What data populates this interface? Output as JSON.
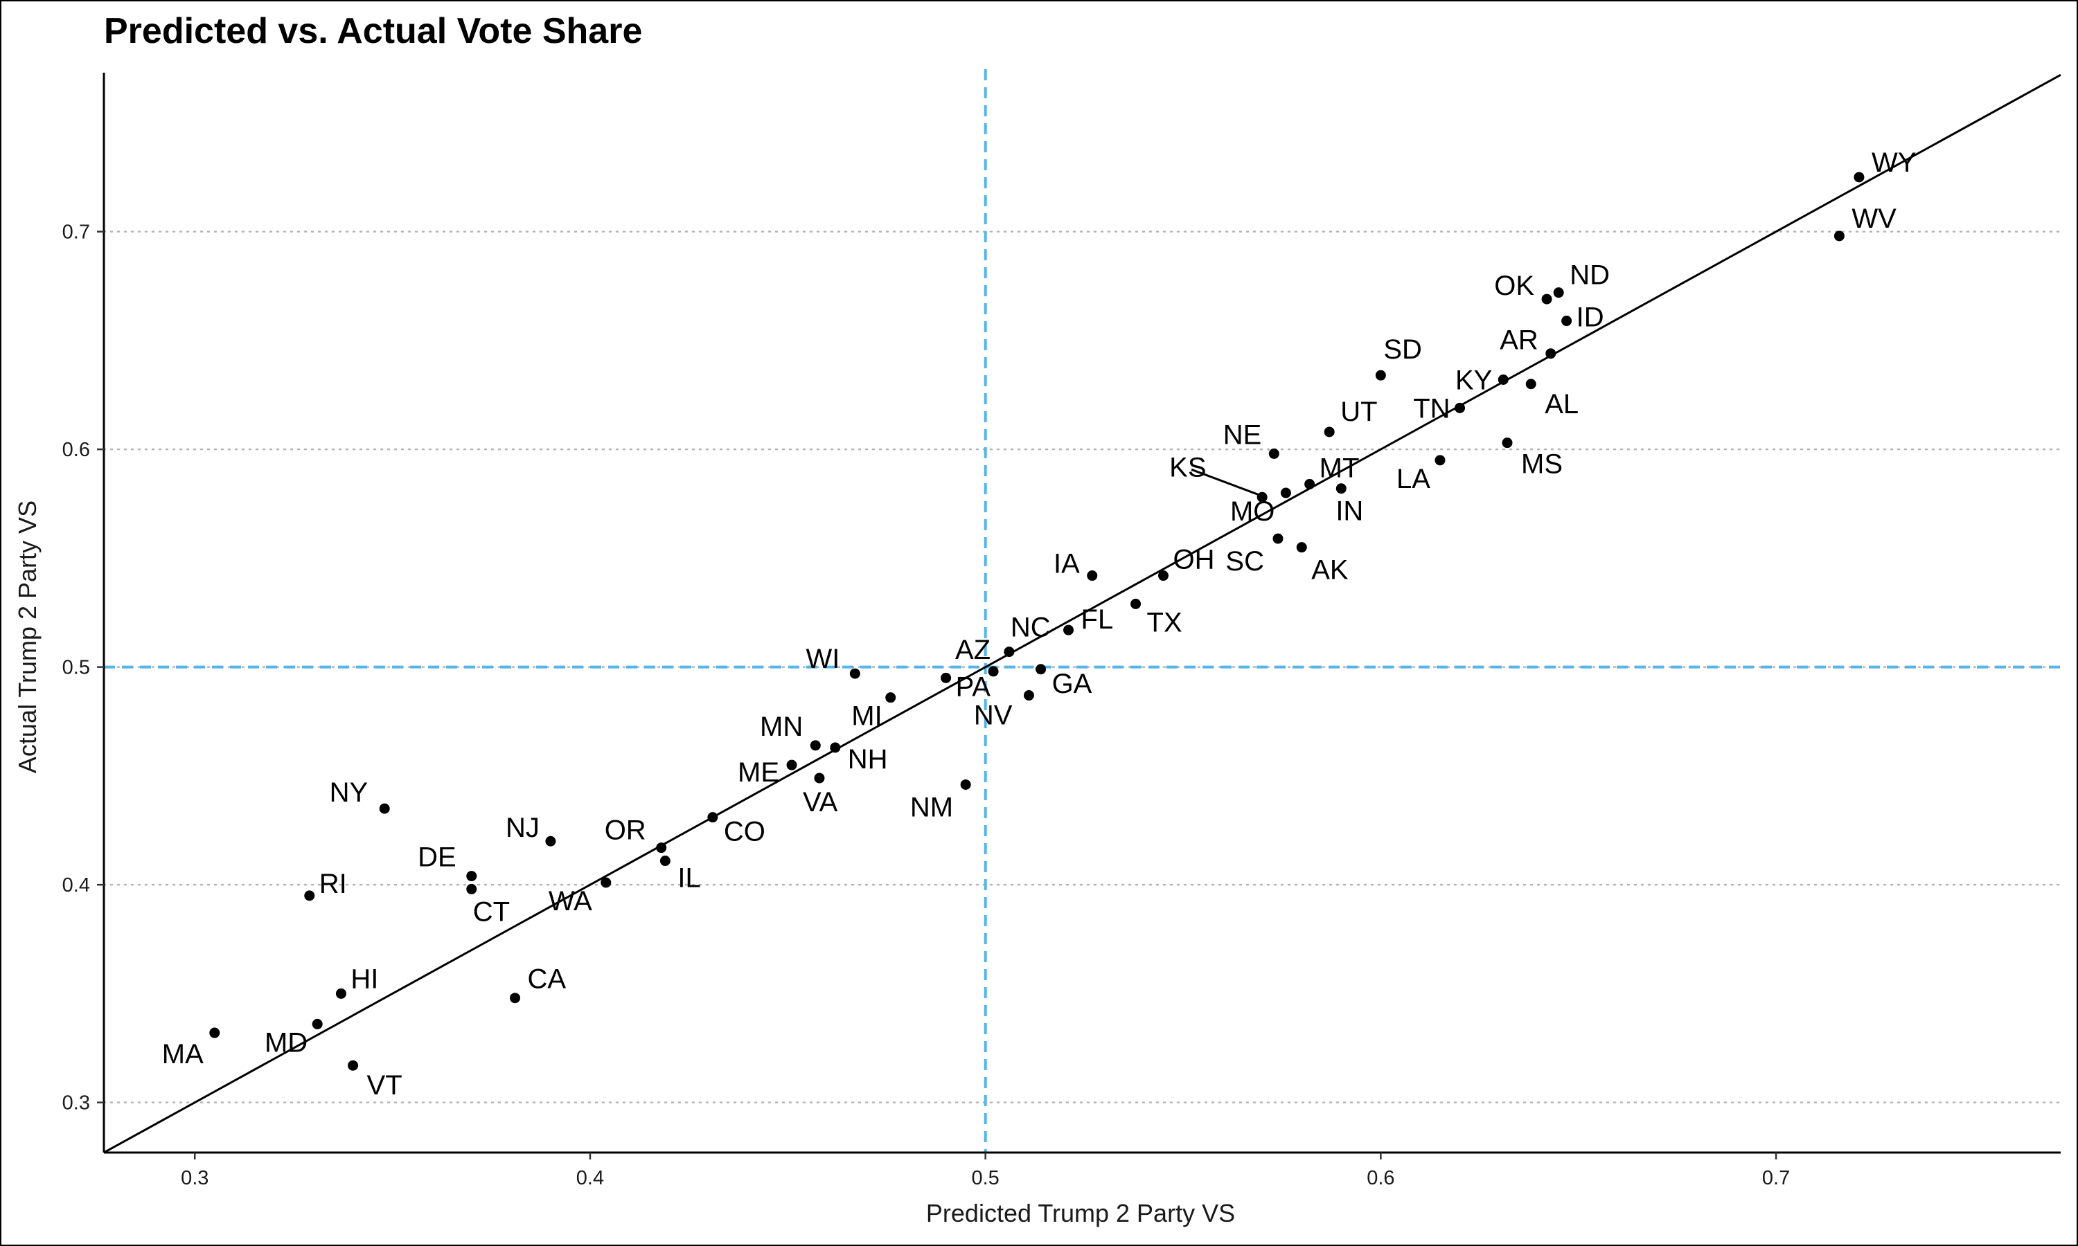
{
  "chart_data": {
    "type": "scatter",
    "title": "Predicted vs. Actual Vote Share",
    "xlabel": "Predicted Trump 2 Party VS",
    "ylabel": "Actual Trump 2 Party VS",
    "xlim": [
      0.277,
      0.772
    ],
    "ylim": [
      0.277,
      0.773
    ],
    "x_ticks": [
      0.3,
      0.4,
      0.5,
      0.6,
      0.7
    ],
    "x_tick_labels": [
      "0.3",
      "0.4",
      "0.5",
      "0.6",
      "0.7"
    ],
    "y_ticks": [
      0.3,
      0.4,
      0.5,
      0.6,
      0.7
    ],
    "y_tick_labels": [
      "0.3",
      "0.4",
      "0.5",
      "0.6",
      "0.7"
    ],
    "grid": "horizontal dotted at y ticks",
    "reference_line": {
      "type": "identity",
      "slope": 1,
      "intercept": 0,
      "color": "#000000"
    },
    "threshold_lines": {
      "x": 0.5,
      "y": 0.5,
      "color": "#56B4E9",
      "style": "dashed"
    },
    "point_color": "#000000",
    "points": [
      {
        "label": "WY",
        "x": 0.721,
        "y": 0.725
      },
      {
        "label": "WV",
        "x": 0.716,
        "y": 0.698
      },
      {
        "label": "OK",
        "x": 0.642,
        "y": 0.669
      },
      {
        "label": "ND",
        "x": 0.645,
        "y": 0.672
      },
      {
        "label": "ID",
        "x": 0.647,
        "y": 0.659
      },
      {
        "label": "AR",
        "x": 0.643,
        "y": 0.644
      },
      {
        "label": "AL",
        "x": 0.638,
        "y": 0.63
      },
      {
        "label": "KY",
        "x": 0.631,
        "y": 0.632
      },
      {
        "label": "MS",
        "x": 0.632,
        "y": 0.603
      },
      {
        "label": "SD",
        "x": 0.6,
        "y": 0.634
      },
      {
        "label": "TN",
        "x": 0.62,
        "y": 0.619
      },
      {
        "label": "LA",
        "x": 0.615,
        "y": 0.595
      },
      {
        "label": "UT",
        "x": 0.587,
        "y": 0.608
      },
      {
        "label": "NE",
        "x": 0.573,
        "y": 0.598
      },
      {
        "label": "MT",
        "x": 0.582,
        "y": 0.584
      },
      {
        "label": "IN",
        "x": 0.59,
        "y": 0.582
      },
      {
        "label": "KS",
        "x": 0.57,
        "y": 0.578
      },
      {
        "label": "MO",
        "x": 0.576,
        "y": 0.58
      },
      {
        "label": "SC",
        "x": 0.574,
        "y": 0.559
      },
      {
        "label": "AK",
        "x": 0.58,
        "y": 0.555
      },
      {
        "label": "IA",
        "x": 0.527,
        "y": 0.542
      },
      {
        "label": "OH",
        "x": 0.545,
        "y": 0.542
      },
      {
        "label": "TX",
        "x": 0.538,
        "y": 0.529
      },
      {
        "label": "FL",
        "x": 0.521,
        "y": 0.517
      },
      {
        "label": "NC",
        "x": 0.506,
        "y": 0.507
      },
      {
        "label": "GA",
        "x": 0.514,
        "y": 0.499
      },
      {
        "label": "NV",
        "x": 0.511,
        "y": 0.487
      },
      {
        "label": "AZ",
        "x": 0.502,
        "y": 0.498
      },
      {
        "label": "PA",
        "x": 0.49,
        "y": 0.495
      },
      {
        "label": "MI",
        "x": 0.476,
        "y": 0.486
      },
      {
        "label": "WI",
        "x": 0.467,
        "y": 0.497
      },
      {
        "label": "MN",
        "x": 0.457,
        "y": 0.464
      },
      {
        "label": "NH",
        "x": 0.462,
        "y": 0.463
      },
      {
        "label": "ME",
        "x": 0.451,
        "y": 0.455
      },
      {
        "label": "VA",
        "x": 0.458,
        "y": 0.449
      },
      {
        "label": "NM",
        "x": 0.495,
        "y": 0.446
      },
      {
        "label": "CO",
        "x": 0.431,
        "y": 0.431
      },
      {
        "label": "OR",
        "x": 0.418,
        "y": 0.417
      },
      {
        "label": "IL",
        "x": 0.419,
        "y": 0.411
      },
      {
        "label": "NJ",
        "x": 0.39,
        "y": 0.42
      },
      {
        "label": "NY",
        "x": 0.348,
        "y": 0.435
      },
      {
        "label": "DE",
        "x": 0.37,
        "y": 0.404
      },
      {
        "label": "CT",
        "x": 0.37,
        "y": 0.398
      },
      {
        "label": "WA",
        "x": 0.404,
        "y": 0.401
      },
      {
        "label": "RI",
        "x": 0.329,
        "y": 0.395
      },
      {
        "label": "CA",
        "x": 0.381,
        "y": 0.348
      },
      {
        "label": "HI",
        "x": 0.337,
        "y": 0.35
      },
      {
        "label": "MD",
        "x": 0.331,
        "y": 0.336
      },
      {
        "label": "VT",
        "x": 0.34,
        "y": 0.317
      },
      {
        "label": "MA",
        "x": 0.305,
        "y": 0.332
      }
    ]
  }
}
